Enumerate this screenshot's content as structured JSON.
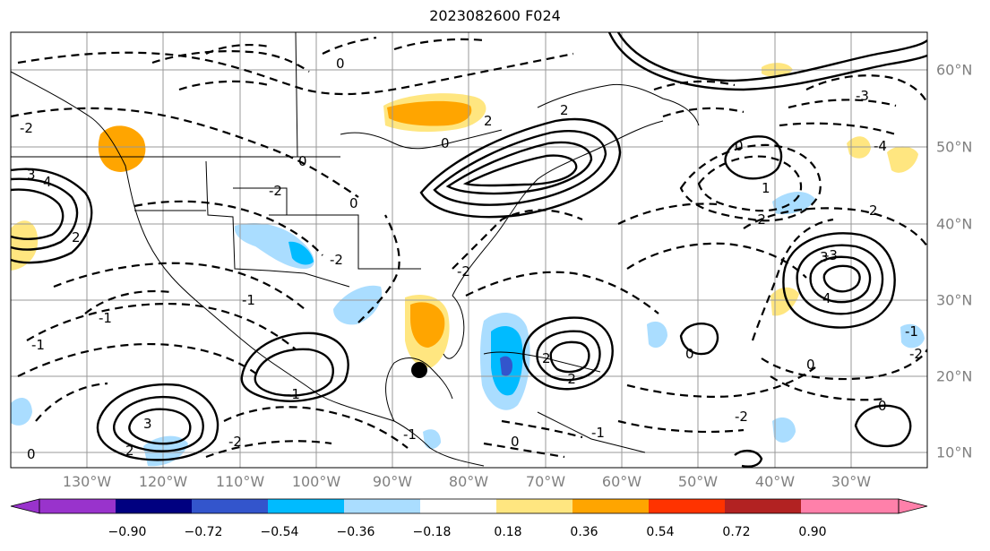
{
  "title": "2023082600 F024",
  "longitude_labels": [
    "130°W",
    "120°W",
    "110°W",
    "100°W",
    "90°W",
    "80°W",
    "70°W",
    "60°W",
    "50°W",
    "40°W",
    "30°W"
  ],
  "latitude_labels": [
    "60°N",
    "50°N",
    "40°N",
    "30°N",
    "20°N",
    "10°N"
  ],
  "colorbar": {
    "ticks": [
      "−0.90",
      "−0.72",
      "−0.54",
      "−0.36",
      "−0.18",
      "0.18",
      "0.36",
      "0.54",
      "0.72",
      "0.90"
    ],
    "colors": [
      "#9933cc",
      "#000080",
      "#3355cc",
      "#00bbff",
      "#aaddff",
      "#ffffff",
      "#ffe680",
      "#ffa500",
      "#ff3300",
      "#b22222",
      "#ff80aa"
    ]
  },
  "shading_colors": {
    "neg_light": "#aaddff",
    "neg_mid": "#00bbff",
    "neg_dark": "#3355cc",
    "pos_light": "#ffe680",
    "pos_mid": "#ffa500"
  },
  "contour_labels": [
    "0",
    "0",
    "0",
    "2",
    "-2",
    "-2",
    "-3",
    "-4",
    "4",
    "3",
    "-3",
    "-1",
    "-1",
    "2",
    "-2",
    "2",
    "3",
    "-1",
    "-2",
    "2",
    "-2",
    "0",
    "-1",
    "-2",
    "4",
    "3",
    "2",
    "1",
    "-2",
    "-1",
    "0",
    "0",
    "0",
    "0",
    "-1",
    "-2",
    "0",
    "0",
    "-1",
    "-2",
    "2"
  ],
  "storm_marker": "black-dot"
}
